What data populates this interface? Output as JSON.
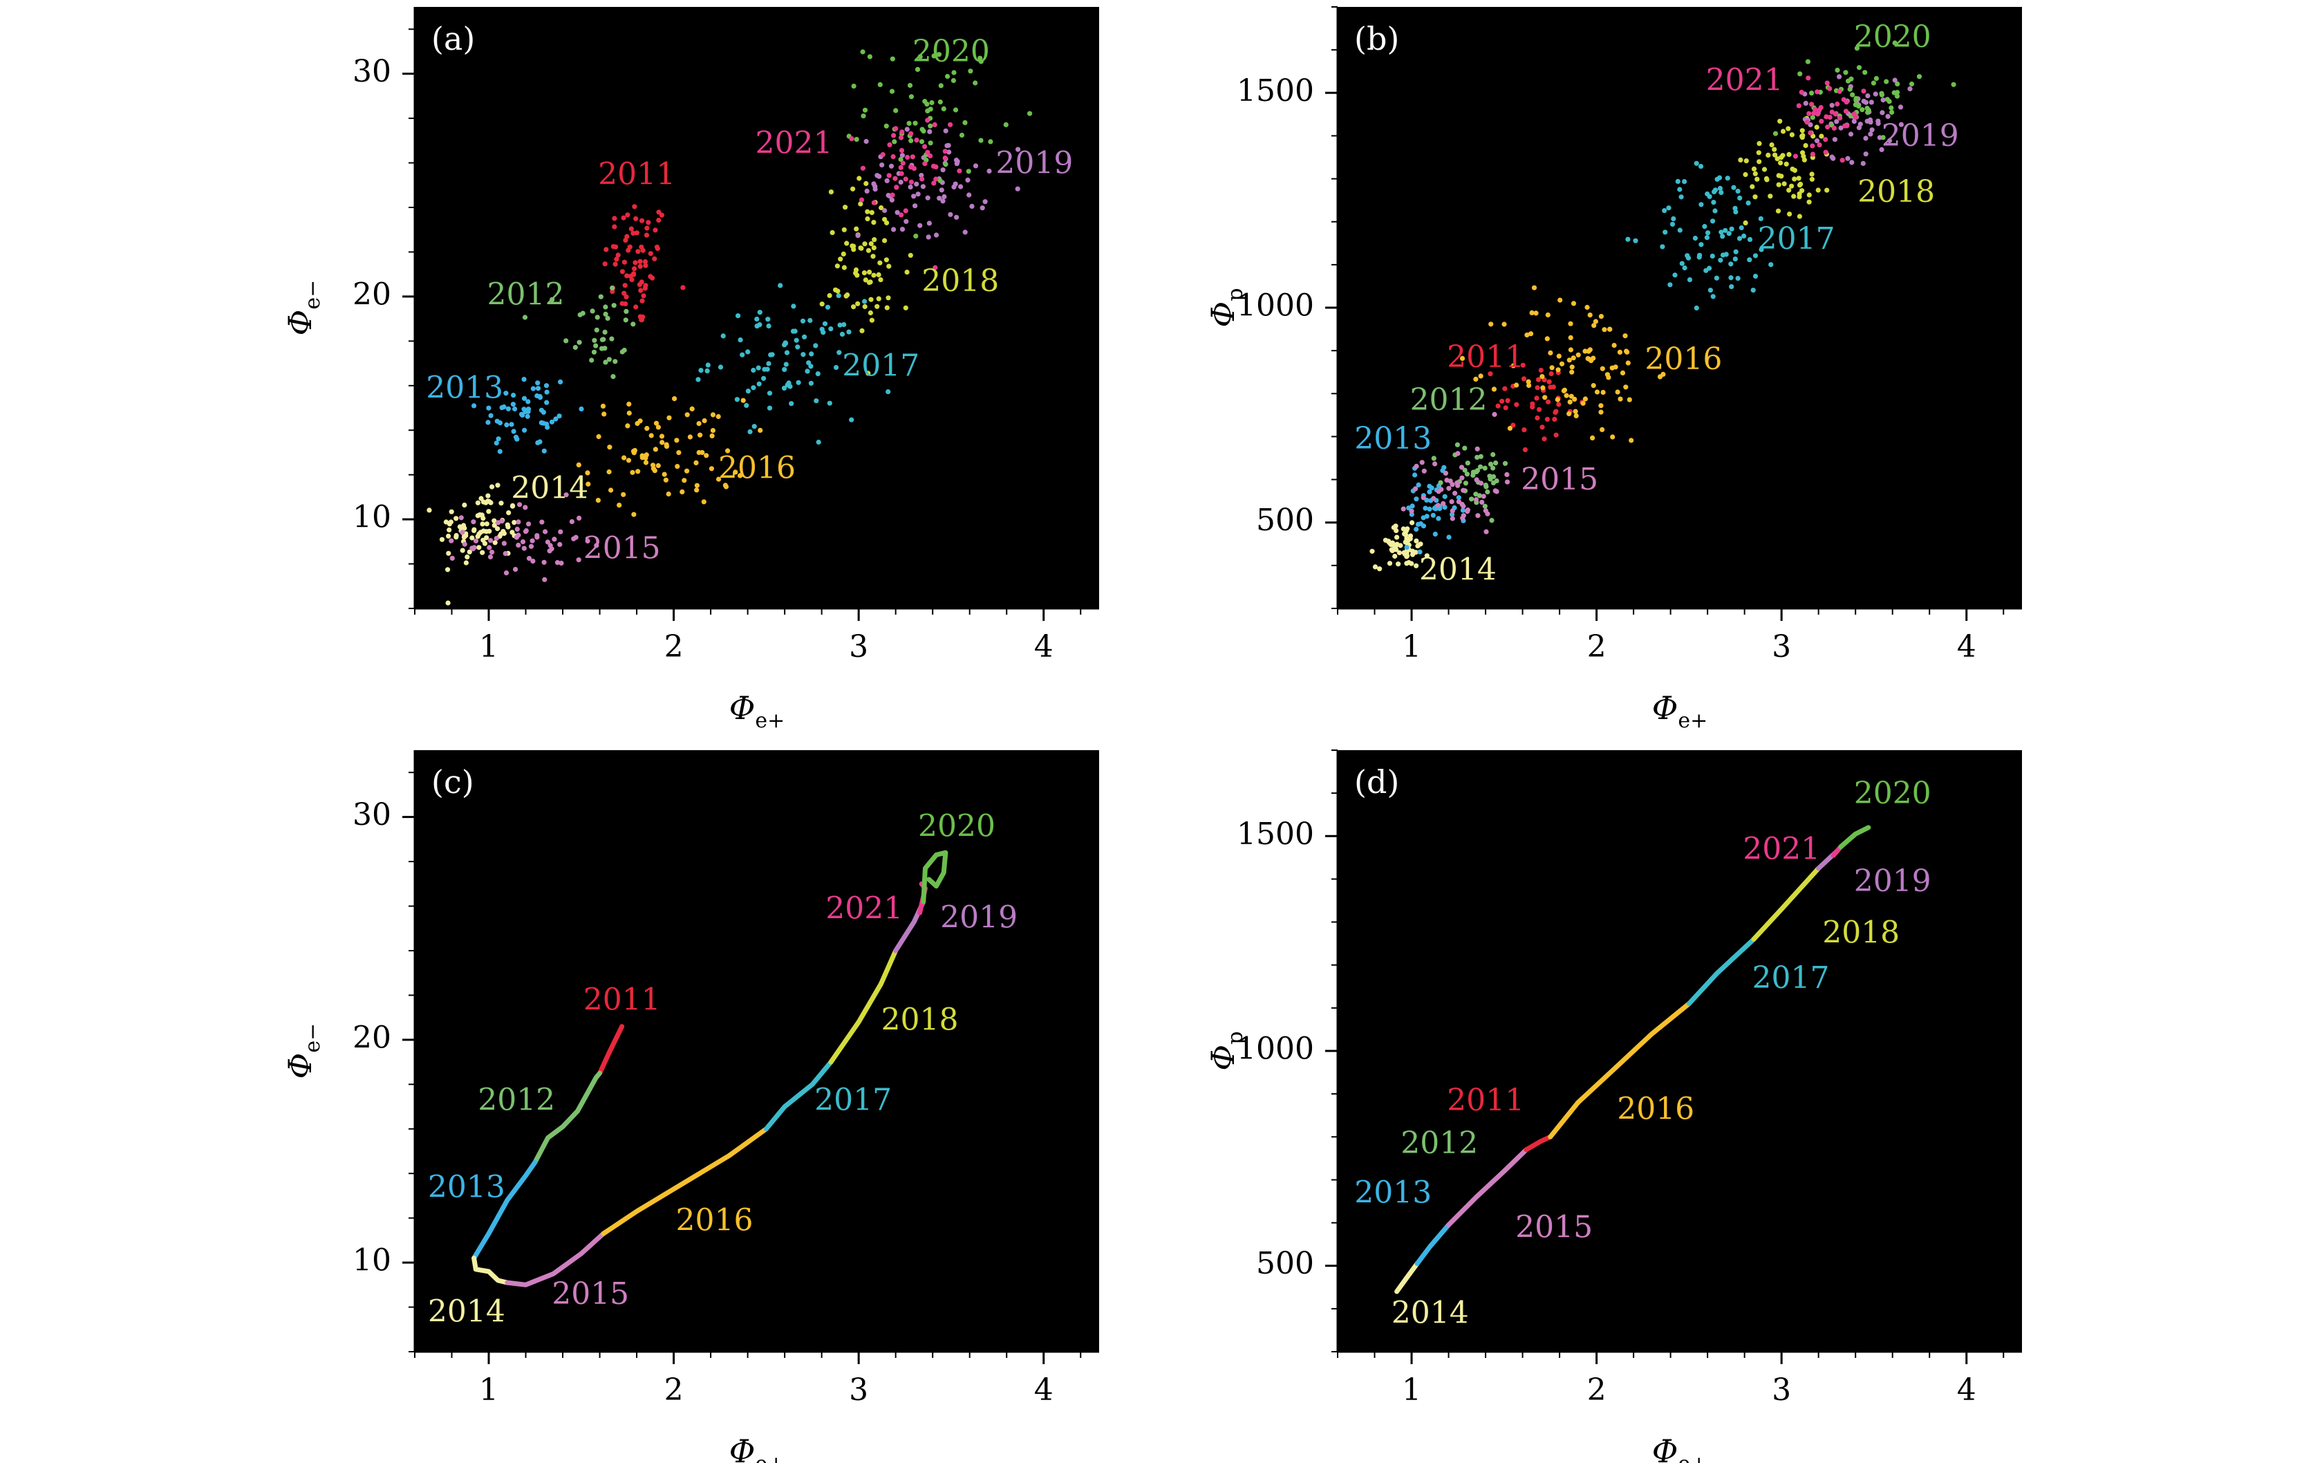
{
  "figure": {
    "colors": {
      "panel_bg": "#000000",
      "axis": "#000000",
      "tick_text": "#000000",
      "2011": "#e8283c",
      "2012": "#7cc06e",
      "2013": "#3db4e6",
      "2014": "#f3efa0",
      "2015": "#cf7fc0",
      "2016": "#f7c02c",
      "2017": "#3cbccc",
      "2018": "#d4dc3c",
      "2019": "#b97cc4",
      "2020": "#6cbf4c",
      "2021": "#e83c8c"
    }
  },
  "chart_data": [
    {
      "id": "a",
      "type": "scatter",
      "panel_label": "(a)",
      "xlabel_main": "Φ",
      "xlabel_sub": "e+",
      "ylabel_main": "Φ",
      "ylabel_sub": "e−",
      "xlim": [
        0.6,
        4.3
      ],
      "ylim": [
        6,
        33
      ],
      "xticks": [
        1,
        2,
        3,
        4
      ],
      "xtick_labels": [
        "1",
        "2",
        "3",
        "4"
      ],
      "yticks": [
        10,
        20,
        30
      ],
      "ytick_labels": [
        "10",
        "20",
        "30"
      ],
      "clusters": [
        {
          "year": "2011",
          "cx": 1.8,
          "cy": 21.5,
          "sx": 0.09,
          "sy": 1.5,
          "n": 70
        },
        {
          "year": "2012",
          "cx": 1.6,
          "cy": 18.5,
          "sx": 0.1,
          "sy": 1.2,
          "n": 35
        },
        {
          "year": "2013",
          "cx": 1.2,
          "cy": 14.8,
          "sx": 0.13,
          "sy": 1.0,
          "n": 55
        },
        {
          "year": "2014",
          "cx": 0.95,
          "cy": 9.6,
          "sx": 0.11,
          "sy": 0.8,
          "n": 80
        },
        {
          "year": "2015",
          "cx": 1.2,
          "cy": 9.0,
          "sx": 0.16,
          "sy": 0.9,
          "n": 60
        },
        {
          "year": "2016",
          "cx": 1.95,
          "cy": 13.0,
          "sx": 0.22,
          "sy": 1.2,
          "n": 80
        },
        {
          "year": "2017",
          "cx": 2.6,
          "cy": 17.2,
          "sx": 0.2,
          "sy": 1.3,
          "n": 80
        },
        {
          "year": "2018",
          "cx": 3.05,
          "cy": 21.5,
          "sx": 0.12,
          "sy": 1.8,
          "n": 70
        },
        {
          "year": "2019",
          "cx": 3.35,
          "cy": 25.0,
          "sx": 0.17,
          "sy": 1.2,
          "n": 70
        },
        {
          "year": "2020",
          "cx": 3.4,
          "cy": 28.5,
          "sx": 0.18,
          "sy": 1.5,
          "n": 60
        },
        {
          "year": "2021",
          "cx": 3.25,
          "cy": 25.5,
          "sx": 0.12,
          "sy": 1.4,
          "n": 45
        }
      ],
      "annotations": [
        {
          "year": "2011",
          "text": "2011",
          "x": 1.8,
          "y": 25.4
        },
        {
          "year": "2012",
          "text": "2012",
          "x": 1.2,
          "y": 20.0
        },
        {
          "year": "2013",
          "text": "2013",
          "x": 0.87,
          "y": 15.8
        },
        {
          "year": "2014",
          "text": "2014",
          "x": 1.33,
          "y": 11.3
        },
        {
          "year": "2015",
          "text": "2015",
          "x": 1.72,
          "y": 8.6
        },
        {
          "year": "2016",
          "text": "2016",
          "x": 2.45,
          "y": 12.2
        },
        {
          "year": "2017",
          "text": "2017",
          "x": 3.12,
          "y": 16.8
        },
        {
          "year": "2018",
          "text": "2018",
          "x": 3.55,
          "y": 20.6
        },
        {
          "year": "2019",
          "text": "2019",
          "x": 3.95,
          "y": 25.9
        },
        {
          "year": "2020",
          "text": "2020",
          "x": 3.5,
          "y": 30.9
        },
        {
          "year": "2021",
          "text": "2021",
          "x": 2.65,
          "y": 26.8
        }
      ]
    },
    {
      "id": "b",
      "type": "scatter",
      "panel_label": "(b)",
      "xlabel_main": "Φ",
      "xlabel_sub": "e+",
      "ylabel_main": "Φ",
      "ylabel_sub": "p",
      "xlim": [
        0.6,
        4.3
      ],
      "ylim": [
        300,
        1700
      ],
      "xticks": [
        1,
        2,
        3,
        4
      ],
      "xtick_labels": [
        "1",
        "2",
        "3",
        "4"
      ],
      "yticks": [
        500,
        1000,
        1500
      ],
      "ytick_labels": [
        "500",
        "1000",
        "1500"
      ],
      "clusters": [
        {
          "year": "2014",
          "cx": 0.95,
          "cy": 445,
          "sx": 0.07,
          "sy": 25,
          "n": 60
        },
        {
          "year": "2013",
          "cx": 1.1,
          "cy": 530,
          "sx": 0.08,
          "sy": 40,
          "n": 45
        },
        {
          "year": "2012",
          "cx": 1.35,
          "cy": 610,
          "sx": 0.09,
          "sy": 40,
          "n": 40
        },
        {
          "year": "2015",
          "cx": 1.25,
          "cy": 580,
          "sx": 0.12,
          "sy": 50,
          "n": 50
        },
        {
          "year": "2011",
          "cx": 1.7,
          "cy": 780,
          "sx": 0.12,
          "sy": 50,
          "n": 40
        },
        {
          "year": "2016",
          "cx": 1.9,
          "cy": 860,
          "sx": 0.2,
          "sy": 90,
          "n": 90
        },
        {
          "year": "2017",
          "cx": 2.65,
          "cy": 1170,
          "sx": 0.18,
          "sy": 80,
          "n": 80
        },
        {
          "year": "2018",
          "cx": 3.05,
          "cy": 1340,
          "sx": 0.12,
          "sy": 60,
          "n": 70
        },
        {
          "year": "2019",
          "cx": 3.4,
          "cy": 1440,
          "sx": 0.15,
          "sy": 45,
          "n": 60
        },
        {
          "year": "2020",
          "cx": 3.45,
          "cy": 1500,
          "sx": 0.15,
          "sy": 45,
          "n": 50
        },
        {
          "year": "2021",
          "cx": 3.25,
          "cy": 1450,
          "sx": 0.1,
          "sy": 40,
          "n": 40
        }
      ],
      "annotations": [
        {
          "year": "2011",
          "text": "2011",
          "x": 1.4,
          "y": 880
        },
        {
          "year": "2012",
          "text": "2012",
          "x": 1.2,
          "y": 780
        },
        {
          "year": "2013",
          "text": "2013",
          "x": 0.9,
          "y": 690
        },
        {
          "year": "2014",
          "text": "2014",
          "x": 1.25,
          "y": 385
        },
        {
          "year": "2015",
          "text": "2015",
          "x": 1.8,
          "y": 595
        },
        {
          "year": "2016",
          "text": "2016",
          "x": 2.47,
          "y": 875
        },
        {
          "year": "2017",
          "text": "2017",
          "x": 3.08,
          "y": 1155
        },
        {
          "year": "2018",
          "text": "2018",
          "x": 3.62,
          "y": 1265
        },
        {
          "year": "2019",
          "text": "2019",
          "x": 3.75,
          "y": 1395
        },
        {
          "year": "2020",
          "text": "2020",
          "x": 3.6,
          "y": 1625
        },
        {
          "year": "2021",
          "text": "2021",
          "x": 2.8,
          "y": 1525
        }
      ]
    },
    {
      "id": "c",
      "type": "line",
      "panel_label": "(c)",
      "xlabel_main": "Φ",
      "xlabel_sub": "e+",
      "ylabel_main": "Φ",
      "ylabel_sub": "e−",
      "xlim": [
        0.6,
        4.3
      ],
      "ylim": [
        6,
        33
      ],
      "xticks": [
        1,
        2,
        3,
        4
      ],
      "xtick_labels": [
        "1",
        "2",
        "3",
        "4"
      ],
      "yticks": [
        10,
        20,
        30
      ],
      "ytick_labels": [
        "10",
        "20",
        "30"
      ],
      "segments": [
        {
          "year": "2011",
          "points": [
            [
              1.6,
              18.5
            ],
            [
              1.65,
              19.4
            ],
            [
              1.72,
              20.6
            ]
          ]
        },
        {
          "year": "2012",
          "points": [
            [
              1.25,
              14.5
            ],
            [
              1.32,
              15.6
            ],
            [
              1.4,
              16.1
            ],
            [
              1.48,
              16.8
            ],
            [
              1.58,
              18.3
            ],
            [
              1.6,
              18.5
            ]
          ]
        },
        {
          "year": "2013",
          "points": [
            [
              0.92,
              10.2
            ],
            [
              1.0,
              11.3
            ],
            [
              1.1,
              12.8
            ],
            [
              1.2,
              13.9
            ],
            [
              1.25,
              14.5
            ]
          ]
        },
        {
          "year": "2014",
          "points": [
            [
              0.92,
              10.2
            ],
            [
              0.93,
              9.7
            ],
            [
              1.0,
              9.6
            ],
            [
              1.05,
              9.2
            ],
            [
              1.1,
              9.1
            ]
          ]
        },
        {
          "year": "2015",
          "points": [
            [
              1.1,
              9.1
            ],
            [
              1.2,
              9.0
            ],
            [
              1.35,
              9.5
            ],
            [
              1.5,
              10.4
            ],
            [
              1.62,
              11.3
            ]
          ]
        },
        {
          "year": "2016",
          "points": [
            [
              1.62,
              11.3
            ],
            [
              1.8,
              12.3
            ],
            [
              2.0,
              13.3
            ],
            [
              2.3,
              14.8
            ],
            [
              2.5,
              16.0
            ]
          ]
        },
        {
          "year": "2017",
          "points": [
            [
              2.5,
              16.0
            ],
            [
              2.6,
              17.0
            ],
            [
              2.75,
              18.0
            ],
            [
              2.85,
              19.0
            ]
          ]
        },
        {
          "year": "2018",
          "points": [
            [
              2.85,
              19.0
            ],
            [
              3.0,
              20.8
            ],
            [
              3.12,
              22.5
            ],
            [
              3.2,
              24.0
            ]
          ]
        },
        {
          "year": "2019",
          "points": [
            [
              3.2,
              24.0
            ],
            [
              3.3,
              25.3
            ],
            [
              3.35,
              26.2
            ]
          ]
        },
        {
          "year": "2021",
          "points": [
            [
              3.33,
              25.7
            ],
            [
              3.36,
              26.8
            ],
            [
              3.34,
              27.0
            ]
          ]
        },
        {
          "year": "2020",
          "points": [
            [
              3.35,
              26.2
            ],
            [
              3.36,
              27.7
            ],
            [
              3.42,
              28.3
            ],
            [
              3.47,
              28.4
            ],
            [
              3.46,
              27.5
            ],
            [
              3.42,
              26.9
            ],
            [
              3.38,
              27.2
            ]
          ]
        }
      ],
      "annotations": [
        {
          "year": "2011",
          "text": "2011",
          "x": 1.72,
          "y": 21.7
        },
        {
          "year": "2012",
          "text": "2012",
          "x": 1.15,
          "y": 17.2
        },
        {
          "year": "2013",
          "text": "2013",
          "x": 0.88,
          "y": 13.3
        },
        {
          "year": "2014",
          "text": "2014",
          "x": 0.88,
          "y": 7.7
        },
        {
          "year": "2015",
          "text": "2015",
          "x": 1.55,
          "y": 8.5
        },
        {
          "year": "2016",
          "text": "2016",
          "x": 2.22,
          "y": 11.8
        },
        {
          "year": "2017",
          "text": "2017",
          "x": 2.97,
          "y": 17.2
        },
        {
          "year": "2018",
          "text": "2018",
          "x": 3.33,
          "y": 20.8
        },
        {
          "year": "2019",
          "text": "2019",
          "x": 3.65,
          "y": 25.4
        },
        {
          "year": "2020",
          "text": "2020",
          "x": 3.53,
          "y": 29.5
        },
        {
          "year": "2021",
          "text": "2021",
          "x": 3.03,
          "y": 25.8
        }
      ]
    },
    {
      "id": "d",
      "type": "line",
      "panel_label": "(d)",
      "xlabel_main": "Φ",
      "xlabel_sub": "e+",
      "ylabel_main": "Φ",
      "ylabel_sub": "p",
      "xlim": [
        0.6,
        4.3
      ],
      "ylim": [
        300,
        1700
      ],
      "xticks": [
        1,
        2,
        3,
        4
      ],
      "xtick_labels": [
        "1",
        "2",
        "3",
        "4"
      ],
      "yticks": [
        500,
        1000,
        1500
      ],
      "ytick_labels": [
        "500",
        "1000",
        "1500"
      ],
      "segments": [
        {
          "year": "2014",
          "points": [
            [
              0.92,
              440
            ],
            [
              0.97,
              470
            ],
            [
              1.03,
              505
            ]
          ]
        },
        {
          "year": "2013",
          "points": [
            [
              1.03,
              505
            ],
            [
              1.1,
              545
            ],
            [
              1.2,
              595
            ]
          ]
        },
        {
          "year": "2015",
          "points": [
            [
              1.2,
              595
            ],
            [
              1.35,
              660
            ],
            [
              1.5,
              720
            ],
            [
              1.62,
              770
            ]
          ]
        },
        {
          "year": "2011",
          "points": [
            [
              1.62,
              770
            ],
            [
              1.7,
              790
            ],
            [
              1.75,
              800
            ]
          ]
        },
        {
          "year": "2016",
          "points": [
            [
              1.75,
              800
            ],
            [
              1.9,
              880
            ],
            [
              2.1,
              960
            ],
            [
              2.3,
              1040
            ],
            [
              2.5,
              1110
            ]
          ]
        },
        {
          "year": "2017",
          "points": [
            [
              2.5,
              1110
            ],
            [
              2.65,
              1180
            ],
            [
              2.85,
              1260
            ]
          ]
        },
        {
          "year": "2018",
          "points": [
            [
              2.85,
              1260
            ],
            [
              3.0,
              1330
            ],
            [
              3.2,
              1425
            ]
          ]
        },
        {
          "year": "2019",
          "points": [
            [
              3.2,
              1425
            ],
            [
              3.3,
              1465
            ]
          ]
        },
        {
          "year": "2021",
          "points": [
            [
              3.28,
              1455
            ],
            [
              3.32,
              1475
            ]
          ]
        },
        {
          "year": "2020",
          "points": [
            [
              3.32,
              1475
            ],
            [
              3.4,
              1505
            ],
            [
              3.47,
              1520
            ]
          ]
        }
      ],
      "annotations": [
        {
          "year": "2011",
          "text": "2011",
          "x": 1.4,
          "y": 880
        },
        {
          "year": "2012",
          "text": "2012",
          "x": 1.15,
          "y": 780
        },
        {
          "year": "2013",
          "text": "2013",
          "x": 0.9,
          "y": 665
        },
        {
          "year": "2014",
          "text": "2014",
          "x": 1.1,
          "y": 385
        },
        {
          "year": "2015",
          "text": "2015",
          "x": 1.77,
          "y": 585
        },
        {
          "year": "2016",
          "text": "2016",
          "x": 2.32,
          "y": 860
        },
        {
          "year": "2017",
          "text": "2017",
          "x": 3.05,
          "y": 1165
        },
        {
          "year": "2018",
          "text": "2018",
          "x": 3.43,
          "y": 1270
        },
        {
          "year": "2019",
          "text": "2019",
          "x": 3.6,
          "y": 1390
        },
        {
          "year": "2020",
          "text": "2020",
          "x": 3.6,
          "y": 1595
        },
        {
          "year": "2021",
          "text": "2021",
          "x": 3.0,
          "y": 1465
        }
      ]
    }
  ]
}
